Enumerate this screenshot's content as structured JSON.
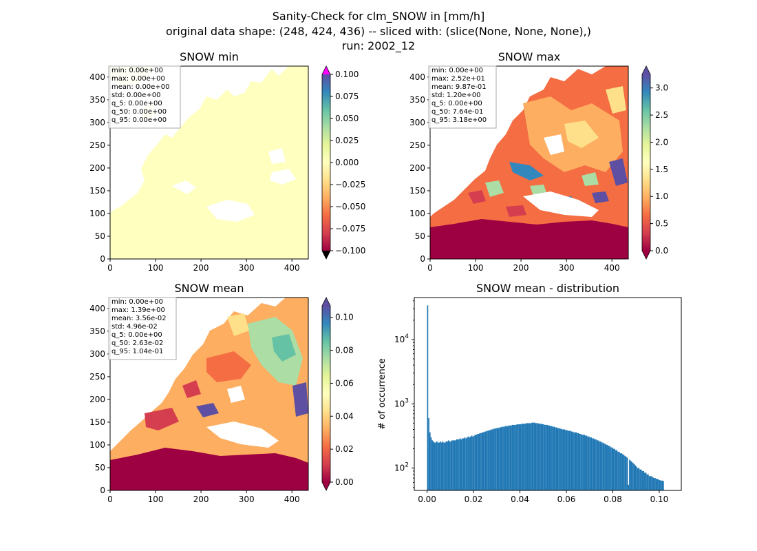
{
  "suptitle": {
    "line1": "Sanity-Check for clm_SNOW in [mm/h]",
    "line2": "original data shape: (248, 424, 436) -- sliced with: (slice(None, None, None),)",
    "line3": "run: 2002_12"
  },
  "colors": {
    "land_yellow": "#ffffbf",
    "sea_low": "#9e0142",
    "histogram_bar": "#1f77b4",
    "colorbar_over_min": "#ff00ff",
    "colorbar_under_min": "#000000"
  },
  "chart_data": [
    {
      "type": "heatmap",
      "title": "SNOW min",
      "xlim": [
        0,
        436
      ],
      "ylim": [
        0,
        424
      ],
      "xticks": [
        "0",
        "100",
        "200",
        "300",
        "400"
      ],
      "yticks": [
        "0",
        "50",
        "100",
        "150",
        "200",
        "250",
        "300",
        "350",
        "400"
      ],
      "colormap": "Spectral",
      "colorbar_ticks": [
        "0.100",
        "0.075",
        "0.050",
        "0.025",
        "0.000",
        "−0.025",
        "−0.050",
        "−0.075",
        "−0.100"
      ],
      "colorbar_range": [
        -0.1,
        0.1
      ],
      "stats": [
        "min: 0.00e+00",
        "max: 0.00e+00",
        "mean: 0.00e+00",
        "std: 0.00e+00",
        "q_5: 0.00e+00",
        "q_50: 0.00e+00",
        "q_95: 0.00e+00"
      ]
    },
    {
      "type": "heatmap",
      "title": "SNOW max",
      "xlim": [
        0,
        436
      ],
      "ylim": [
        0,
        424
      ],
      "xticks": [
        "0",
        "100",
        "200",
        "300",
        "400"
      ],
      "yticks": [
        "0",
        "50",
        "100",
        "150",
        "200",
        "250",
        "300",
        "350",
        "400"
      ],
      "colormap": "Spectral",
      "colorbar_ticks": [
        "3.0",
        "2.5",
        "2.0",
        "1.5",
        "1.0",
        "0.5",
        "0.0"
      ],
      "colorbar_range": [
        0,
        3.25
      ],
      "stats": [
        "min: 0.00e+00",
        "max: 2.52e+01",
        "mean: 9.87e-01",
        "std: 1.20e+00",
        "q_5: 0.00e+00",
        "q_50: 7.64e-01",
        "q_95: 3.18e+00"
      ]
    },
    {
      "type": "heatmap",
      "title": "SNOW mean",
      "xlim": [
        0,
        436
      ],
      "ylim": [
        0,
        424
      ],
      "xticks": [
        "0",
        "100",
        "200",
        "300",
        "400"
      ],
      "yticks": [
        "0",
        "50",
        "100",
        "150",
        "200",
        "250",
        "300",
        "350",
        "400"
      ],
      "colormap": "Spectral",
      "colorbar_ticks": [
        "0.10",
        "0.08",
        "0.06",
        "0.04",
        "0.02",
        "0.00"
      ],
      "colorbar_range": [
        0,
        0.107
      ],
      "stats": [
        "min: 0.00e+00",
        "max: 1.39e+00",
        "mean: 3.56e-02",
        "std: 4.96e-02",
        "q_5: 0.00e+00",
        "q_50: 2.63e-02",
        "q_95: 1.04e-01"
      ]
    },
    {
      "type": "bar",
      "title": "SNOW mean - distribution",
      "xlabel": "",
      "ylabel": "# of occurrence",
      "xlim": [
        -0.0055,
        0.1095
      ],
      "ylim_log": [
        45,
        45000
      ],
      "log_y": true,
      "xticks": [
        "0.00",
        "0.02",
        "0.04",
        "0.06",
        "0.08",
        "0.10"
      ],
      "ytick_exponents": [
        2,
        3,
        4
      ],
      "bin_start": 0.0,
      "bin_width": 0.0005,
      "counts": [
        34000,
        600,
        360,
        300,
        270,
        260,
        250,
        250,
        260,
        250,
        250,
        260,
        250,
        260,
        250,
        250,
        260,
        260,
        270,
        260,
        260,
        270,
        270,
        270,
        270,
        280,
        280,
        280,
        290,
        280,
        290,
        290,
        300,
        290,
        300,
        310,
        300,
        310,
        320,
        310,
        320,
        330,
        330,
        340,
        340,
        350,
        350,
        360,
        360,
        370,
        370,
        380,
        380,
        390,
        390,
        400,
        400,
        410,
        410,
        420,
        420,
        420,
        430,
        430,
        440,
        440,
        440,
        450,
        450,
        450,
        460,
        460,
        460,
        470,
        470,
        470,
        470,
        480,
        480,
        480,
        480,
        490,
        490,
        490,
        490,
        500,
        500,
        500,
        500,
        500,
        510,
        510,
        510,
        500,
        500,
        500,
        490,
        490,
        490,
        480,
        480,
        470,
        470,
        470,
        460,
        460,
        450,
        450,
        440,
        440,
        430,
        430,
        420,
        420,
        410,
        410,
        400,
        400,
        400,
        390,
        390,
        380,
        380,
        380,
        370,
        370,
        360,
        360,
        360,
        350,
        350,
        340,
        340,
        330,
        330,
        330,
        320,
        320,
        310,
        310,
        300,
        300,
        290,
        290,
        280,
        280,
        270,
        270,
        260,
        260,
        250,
        250,
        240,
        240,
        230,
        230,
        220,
        220,
        210,
        210,
        200,
        200,
        190,
        190,
        180,
        180,
        170,
        170,
        165,
        160,
        155,
        150,
        145,
        55,
        135,
        130,
        125,
        120,
        115,
        110,
        105,
        100,
        100,
        95,
        95,
        90,
        90,
        85,
        85,
        80,
        80,
        75,
        75,
        75,
        72,
        70,
        70,
        68,
        68,
        66,
        65,
        64,
        64,
        63
      ]
    }
  ]
}
